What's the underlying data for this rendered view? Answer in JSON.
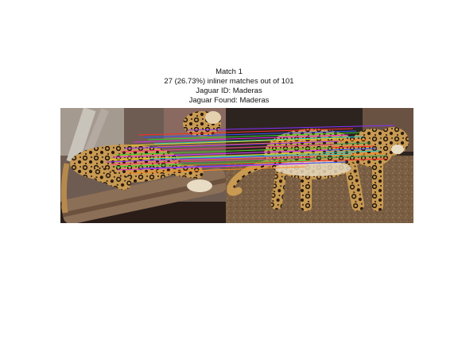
{
  "figure": {
    "title_lines": [
      "Match 1",
      "27 (26.73%) inliner matches out of 101",
      "Jaguar ID: Maderas",
      "Jaguar Found: Maderas"
    ]
  },
  "image_pair": {
    "left_image": "jaguar-lying-on-branch",
    "right_image": "jaguar-walking-on-ground"
  },
  "colors": {
    "background": "#ffffff",
    "match_lines": [
      "#ff2a2a",
      "#2fd02f",
      "#3050ff",
      "#e030e0",
      "#20c8c8",
      "#f0d020",
      "#ff8a20",
      "#8a30ff",
      "#30a050",
      "#ff3080"
    ]
  },
  "matches": {
    "inliers": 27,
    "total": 101
  }
}
